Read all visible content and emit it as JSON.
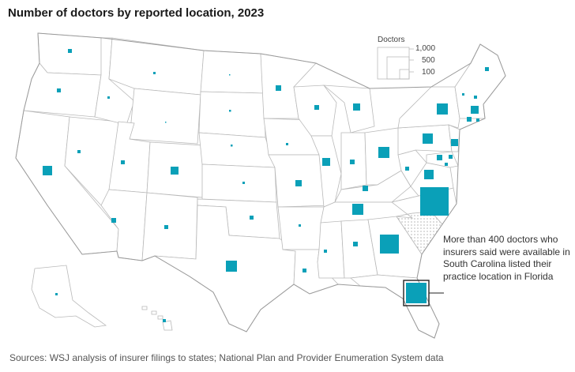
{
  "title": "Number of doctors by reported location, 2023",
  "source": "Sources: WSJ analysis of insurer filings to states; National Plan and Provider Enumeration System data",
  "legend": {
    "title": "Doctors",
    "values": [
      "1,000",
      "500",
      "100"
    ]
  },
  "annotation": "More than 400 doctors who insurers said were available in South Carolina listed their practice location in Florida",
  "colors": {
    "marker": "#0aa0b8",
    "highlight_state_pattern": "dotted",
    "border": "#b9b9b9"
  }
}
